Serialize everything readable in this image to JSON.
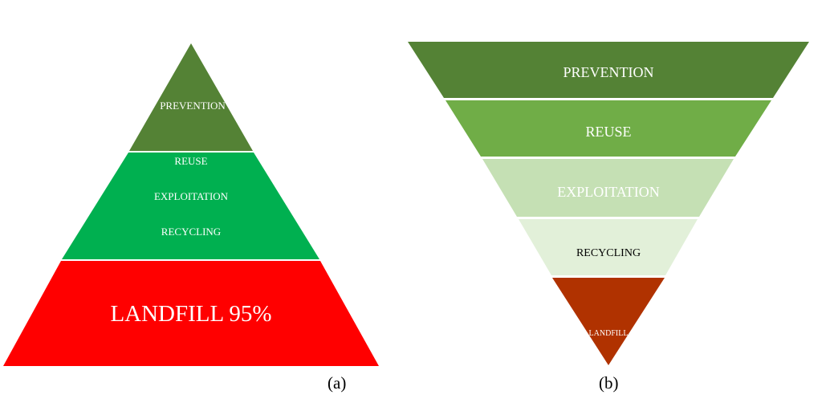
{
  "pyramid_a": {
    "caption": "(a)",
    "tiers": [
      {
        "lines": [
          "PREVENTION"
        ],
        "color": "#548235",
        "text_color": "#ffffff"
      },
      {
        "lines": [
          "REUSE",
          "EXPLOITATION",
          "RECYCLING"
        ],
        "color": "#00b050",
        "text_color": "#ffffff"
      },
      {
        "lines": [
          "LANDFILL 95%"
        ],
        "color": "#ff0000",
        "text_color": "#ffffff"
      }
    ]
  },
  "pyramid_b": {
    "caption": "(b)",
    "tiers": [
      {
        "lines": [
          "PREVENTION"
        ],
        "color": "#548235",
        "text_color": "#ffffff"
      },
      {
        "lines": [
          "REUSE"
        ],
        "color": "#70ad47",
        "text_color": "#ffffff"
      },
      {
        "lines": [
          "EXPLOITATION"
        ],
        "color": "#c5e0b4",
        "text_color": "#ffffff"
      },
      {
        "lines": [
          "RECYCLING"
        ],
        "color": "#e2f0d9",
        "text_color": "#000000"
      },
      {
        "lines": [
          "LANDFILL"
        ],
        "color": "#b03200",
        "text_color": "#ffffff"
      }
    ]
  }
}
